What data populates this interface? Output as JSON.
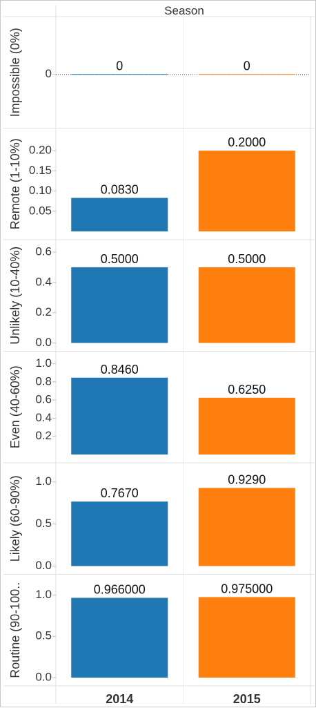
{
  "header": {
    "title": "Season"
  },
  "chart_data": {
    "type": "bar",
    "categories": [
      "2014",
      "2015"
    ],
    "colors": {
      "2014": "#1f77b4",
      "2015": "#ff7f0e"
    },
    "panels": [
      {
        "label": "Impossible (0%)",
        "values": [
          0,
          0
        ],
        "value_labels": [
          "0",
          "0"
        ],
        "ylim": [
          -1,
          1
        ],
        "ticks": [
          0
        ],
        "tick_labels": [
          "0"
        ]
      },
      {
        "label": "Remote (1-10%)",
        "values": [
          0.083,
          0.2
        ],
        "value_labels": [
          "0.0830",
          "0.2000"
        ],
        "ylim": [
          0,
          0.225
        ],
        "ticks": [
          0.05,
          0.1,
          0.15,
          0.2
        ],
        "tick_labels": [
          "0.05",
          "0.10",
          "0.15",
          "0.20"
        ]
      },
      {
        "label": "Unlikely (10-40%)",
        "values": [
          0.5,
          0.5
        ],
        "value_labels": [
          "0.5000",
          "0.5000"
        ],
        "ylim": [
          0,
          0.6
        ],
        "ticks": [
          0,
          0.2,
          0.4,
          0.6
        ],
        "tick_labels": [
          "0.0",
          "0.2",
          "0.4",
          "0.6"
        ]
      },
      {
        "label": "Even (40-60%)",
        "values": [
          0.846,
          0.625
        ],
        "value_labels": [
          "0.8460",
          "0.6250"
        ],
        "ylim": [
          0,
          1.0
        ],
        "ticks": [
          0.2,
          0.4,
          0.6,
          0.8,
          1.0
        ],
        "tick_labels": [
          "0.2",
          "0.4",
          "0.6",
          "0.8",
          "1.0"
        ]
      },
      {
        "label": "Likely (60-90%)",
        "values": [
          0.767,
          0.929
        ],
        "value_labels": [
          "0.7670",
          "0.9290"
        ],
        "ylim": [
          0,
          1.08
        ],
        "ticks": [
          0,
          0.5,
          1.0
        ],
        "tick_labels": [
          "0.0",
          "0.5",
          "1.0"
        ]
      },
      {
        "label": "Routine (90-100..",
        "values": [
          0.966,
          0.975
        ],
        "value_labels": [
          "0.966000",
          "0.975000"
        ],
        "ylim": [
          0,
          1.1
        ],
        "ticks": [
          0,
          0.5,
          1.0
        ],
        "tick_labels": [
          "0.0",
          "0.5",
          "1.0"
        ]
      }
    ]
  }
}
